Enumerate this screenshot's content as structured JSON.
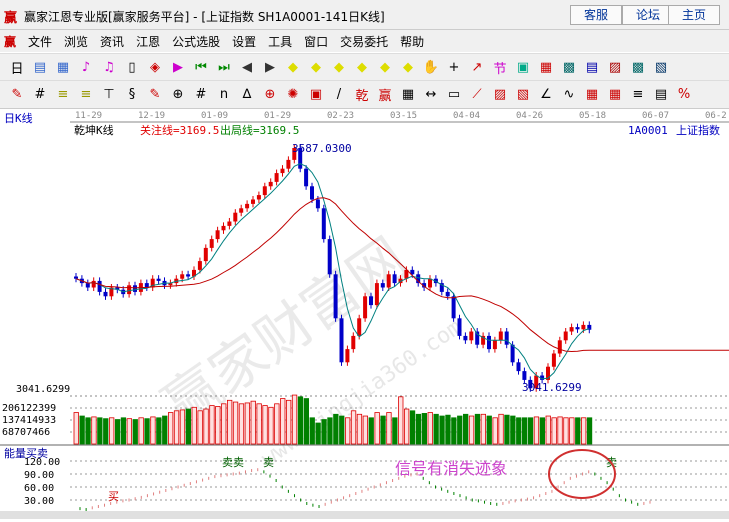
{
  "window": {
    "title": "赢家江恩专业版[赢家服务平台] - [上证指数  SH1A0001-141日K线]",
    "buttons": [
      "客服",
      "论坛",
      "主页"
    ]
  },
  "menu": [
    "文件",
    "浏览",
    "资讯",
    "江恩",
    "公式选股",
    "设置",
    "工具",
    "窗口",
    "交易委托",
    "帮助"
  ],
  "toolbar1_icons": [
    "period-day",
    "indicator",
    "stock-chart",
    "chart-a",
    "chart-b",
    "candle",
    "gann",
    "color",
    "first",
    "last",
    "prev",
    "next",
    "diamond-left",
    "diamond-right",
    "diamond-lr",
    "diamond-x",
    "diamond-4",
    "diamond-all",
    "hand",
    "crosshair",
    "draw",
    "jie",
    "gann-sq",
    "calendar",
    "calculator",
    "notes",
    "save",
    "network",
    "export"
  ],
  "toolbar2_icons": [
    "pen",
    "lines",
    "gold1",
    "gold2",
    "fib",
    "spiral",
    "draw2",
    "circle",
    "parallel",
    "fibn",
    "angle",
    "target",
    "wheel",
    "square",
    "lines2",
    "qian",
    "ying",
    "ruler",
    "measure",
    "box",
    "fan",
    "grid-box",
    "fan2",
    "angle2",
    "wave",
    "grid1",
    "grid2",
    "lines3",
    "table",
    "percent"
  ],
  "chart": {
    "period": "日K线",
    "name": "乾坤K线",
    "focus_line": "关注线=3169.5",
    "exit_line": "出局线=3169.5",
    "code": "1A0001",
    "index_name": "上证指数",
    "dates": [
      "11-29",
      "12-19",
      "01-09",
      "01-29",
      "02-23",
      "03-15",
      "04-04",
      "04-26",
      "05-18",
      "06-07",
      "06-2"
    ],
    "high_label": "3587.0300",
    "low_label": "3041.6299",
    "low_axis": "3041.6299",
    "colors": {
      "up": "#e00000",
      "down": "#0000c8",
      "ma5": "#008080",
      "ma20": "#c00000"
    }
  },
  "watermark": {
    "text": "赢家财富网",
    "url": "www.yingjia360.com"
  },
  "chart_data": {
    "type": "candlestick",
    "closes": [
      3290,
      3280,
      3270,
      3285,
      3260,
      3250,
      3270,
      3265,
      3255,
      3275,
      3260,
      3280,
      3270,
      3290,
      3285,
      3275,
      3280,
      3290,
      3300,
      3295,
      3310,
      3330,
      3360,
      3380,
      3400,
      3410,
      3420,
      3440,
      3450,
      3460,
      3470,
      3480,
      3500,
      3510,
      3530,
      3540,
      3560,
      3587,
      3540,
      3500,
      3470,
      3450,
      3380,
      3300,
      3200,
      3100,
      3130,
      3160,
      3200,
      3250,
      3230,
      3280,
      3270,
      3300,
      3280,
      3290,
      3310,
      3300,
      3280,
      3270,
      3290,
      3280,
      3260,
      3250,
      3200,
      3160,
      3150,
      3170,
      3140,
      3160,
      3130,
      3150,
      3170,
      3140,
      3100,
      3080,
      3060,
      3041,
      3070,
      3060,
      3090,
      3120,
      3150,
      3170,
      3180,
      3175,
      3185,
      3174
    ],
    "volume_axis": [
      "206122399",
      "137414933",
      "68707466"
    ],
    "volumes": [
      180,
      160,
      150,
      155,
      150,
      145,
      150,
      140,
      150,
      145,
      140,
      150,
      145,
      155,
      150,
      160,
      180,
      190,
      195,
      200,
      210,
      190,
      200,
      220,
      215,
      230,
      250,
      240,
      230,
      235,
      245,
      230,
      220,
      210,
      230,
      260,
      250,
      280,
      270,
      260,
      150,
      120,
      140,
      150,
      170,
      160,
      150,
      190,
      170,
      160,
      150,
      180,
      160,
      180,
      150,
      270,
      200,
      190,
      170,
      175,
      180,
      170,
      160,
      165,
      150,
      160,
      170,
      160,
      170,
      170,
      160,
      150,
      170,
      165,
      160,
      150,
      150,
      150,
      155,
      150,
      160,
      150,
      155,
      150,
      150,
      150,
      150,
      150
    ],
    "energy": {
      "label": "能量买卖",
      "yticks": [
        "120.00",
        "90.00",
        "60.00",
        "30.00"
      ],
      "signals": [
        {
          "text": "买",
          "i": 12
        },
        {
          "text": "卖卖",
          "i": 50
        },
        {
          "text": "卖",
          "i": 58
        },
        {
          "text": "卖",
          "i": 126
        }
      ],
      "values": [
        10,
        8,
        12,
        15,
        18,
        22,
        25,
        28,
        30,
        33,
        36,
        40,
        44,
        48,
        52,
        56,
        60,
        64,
        68,
        72,
        76,
        80,
        84,
        86,
        88,
        90,
        92,
        95,
        98,
        100,
        95,
        85,
        75,
        60,
        50,
        40,
        30,
        22,
        18,
        15,
        20,
        25,
        30,
        35,
        40,
        45,
        50,
        55,
        60,
        65,
        70,
        75,
        80,
        85,
        88,
        90,
        80,
        70,
        60,
        55,
        50,
        45,
        40,
        35,
        30,
        28,
        25,
        22,
        20,
        22,
        25,
        28,
        30,
        32,
        35,
        40,
        45,
        50,
        60,
        70,
        80,
        85,
        90,
        95,
        90,
        80,
        70,
        55,
        40,
        30,
        25,
        20,
        22,
        25
      ]
    },
    "annotation": "信号有消失迹象"
  }
}
